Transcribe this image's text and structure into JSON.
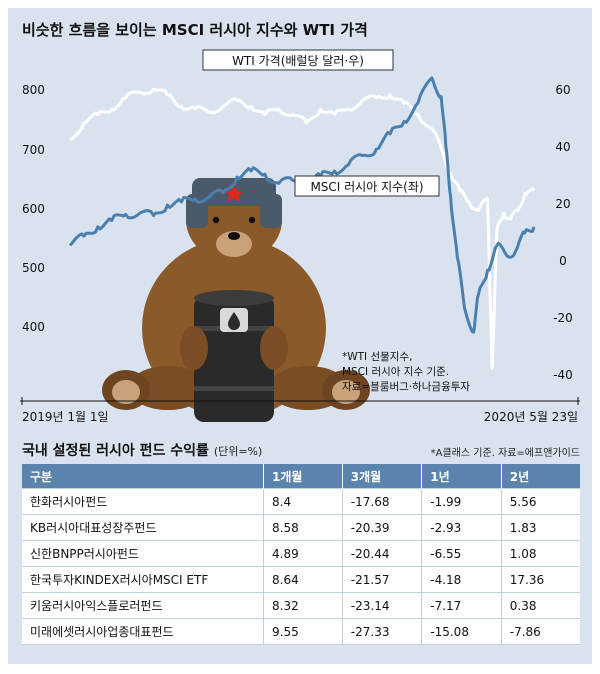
{
  "chart_data": [
    {
      "type": "line",
      "title": "비슷한 흐름을 보이는 MSCI 러시아 지수와 WTI 가격",
      "x_start_label": "2019년 1월 1일",
      "x_end_label": "2020년 5월 23일",
      "y_left_ticks": [
        "800",
        "700",
        "600",
        "500",
        "400"
      ],
      "y_right_ticks": [
        "60",
        "40",
        "20",
        "0",
        "-20",
        "-40"
      ],
      "ylim_left": [
        350,
        850
      ],
      "ylim_right": [
        -42,
        68
      ],
      "series": [
        {
          "name": "WTI 가격(배럴당 달러·우)",
          "axis": "right",
          "color": "#ffffff",
          "t": [
            0,
            0.03,
            0.06,
            0.09,
            0.12,
            0.15,
            0.18,
            0.21,
            0.24,
            0.27,
            0.3,
            0.33,
            0.36,
            0.39,
            0.42,
            0.45,
            0.48,
            0.51,
            0.54,
            0.57,
            0.6,
            0.63,
            0.66,
            0.69,
            0.72,
            0.75,
            0.78,
            0.8,
            0.82,
            0.84,
            0.86,
            0.88,
            0.9,
            0.91,
            0.92,
            0.935,
            0.95,
            0.965,
            0.98,
            1.0
          ],
          "values": [
            46,
            52,
            55,
            57,
            61,
            63,
            64,
            62,
            58,
            57,
            56,
            58,
            60,
            58,
            55,
            57,
            55,
            52,
            57,
            55,
            57,
            60,
            61,
            62,
            59,
            55,
            50,
            43,
            34,
            28,
            24,
            21,
            25,
            -35,
            14,
            20,
            18,
            21,
            27,
            28
          ]
        },
        {
          "name": "MSCI 러시아 지수(좌)",
          "axis": "left",
          "color": "#4b7fae",
          "t": [
            0,
            0.03,
            0.06,
            0.09,
            0.12,
            0.15,
            0.18,
            0.21,
            0.24,
            0.27,
            0.3,
            0.33,
            0.36,
            0.39,
            0.42,
            0.45,
            0.48,
            0.51,
            0.54,
            0.57,
            0.6,
            0.63,
            0.66,
            0.69,
            0.72,
            0.75,
            0.78,
            0.8,
            0.81,
            0.82,
            0.835,
            0.85,
            0.87,
            0.88,
            0.9,
            0.92,
            0.94,
            0.96,
            0.98,
            1.0
          ],
          "values": [
            580,
            595,
            610,
            620,
            630,
            632,
            628,
            645,
            650,
            655,
            658,
            665,
            690,
            700,
            695,
            680,
            685,
            680,
            692,
            700,
            710,
            725,
            735,
            760,
            780,
            810,
            850,
            820,
            740,
            660,
            560,
            480,
            440,
            500,
            540,
            580,
            565,
            570,
            600,
            610
          ]
        }
      ]
    },
    {
      "type": "table",
      "title": "국내 설정된 러시아 펀드 수익률",
      "unit": "(단위=%)",
      "note": "*A클래스 기준. 자료=에프앤가이드",
      "columns": [
        "구분",
        "1개월",
        "3개월",
        "1년",
        "2년"
      ],
      "rows": [
        [
          "한화러시아펀드",
          "8.4",
          "-17.68",
          "-1.99",
          "5.56"
        ],
        [
          "KB러시아대표성장주펀드",
          "8.58",
          "-20.39",
          "-2.93",
          "1.83"
        ],
        [
          "신한BNPP러시아펀드",
          "4.89",
          "-20.44",
          "-6.55",
          "1.08"
        ],
        [
          "한국투자KINDEX러시아MSCI ETF",
          "8.64",
          "-21.57",
          "-4.18",
          "17.36"
        ],
        [
          "키움러시아익스플로러펀드",
          "8.32",
          "-23.14",
          "-7.17",
          "0.38"
        ],
        [
          "미래에셋러시아업종대표펀드",
          "9.55",
          "-27.33",
          "-15.08",
          "-7.86"
        ]
      ]
    }
  ],
  "chart_labels": {
    "wti_label": "WTI 가격(배럴당 달러·우)",
    "msci_label": "MSCI 러시아 지수(좌)",
    "source_line1": "*WTI 선물지수,",
    "source_line2": "MSCI 러시아 지수 기준.",
    "source_line3": "자료=블룸버그·하나금융투자"
  },
  "illustration": {
    "description_icon": "bear-with-oil-barrel-icon",
    "hat_star_color": "#d62b20",
    "bear_color": "#8b5a2b",
    "barrel_color": "#2a2a2a"
  }
}
